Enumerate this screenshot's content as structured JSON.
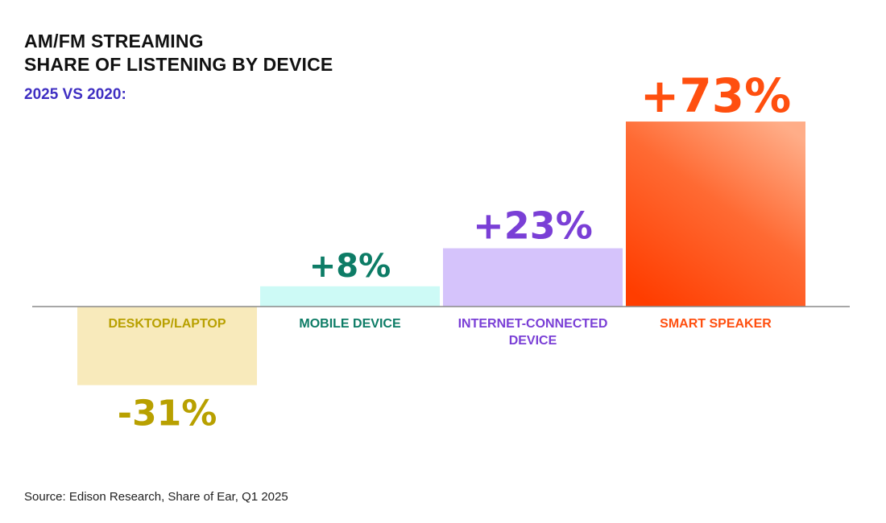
{
  "header": {
    "title_line1": "AM/FM STREAMING",
    "title_line2": "SHARE OF LISTENING BY DEVICE",
    "subtitle": "2025 VS 2020:"
  },
  "footer": {
    "source": "Source: Edison Research, Share of Ear, Q1 2025"
  },
  "chart_data": {
    "type": "bar",
    "title": "AM/FM STREAMING SHARE OF LISTENING BY DEVICE",
    "subtitle": "2025 VS 2020:",
    "categories": [
      "DESKTOP/LAPTOP",
      "MOBILE DEVICE",
      "INTERNET-CONNECTED DEVICE",
      "SMART SPEAKER"
    ],
    "values": [
      -31,
      8,
      23,
      73
    ],
    "value_labels": [
      "-31%",
      "+8%",
      "+23%",
      "+73%"
    ],
    "unit": "%",
    "grid": false,
    "bar_colors": [
      "#f8eabb",
      "#cdfaf6",
      "#d5c3fb",
      "#ff5a1f"
    ],
    "label_colors": [
      "#b8a000",
      "#0d7c66",
      "#7a3fd6",
      "#ff4f0f"
    ]
  }
}
